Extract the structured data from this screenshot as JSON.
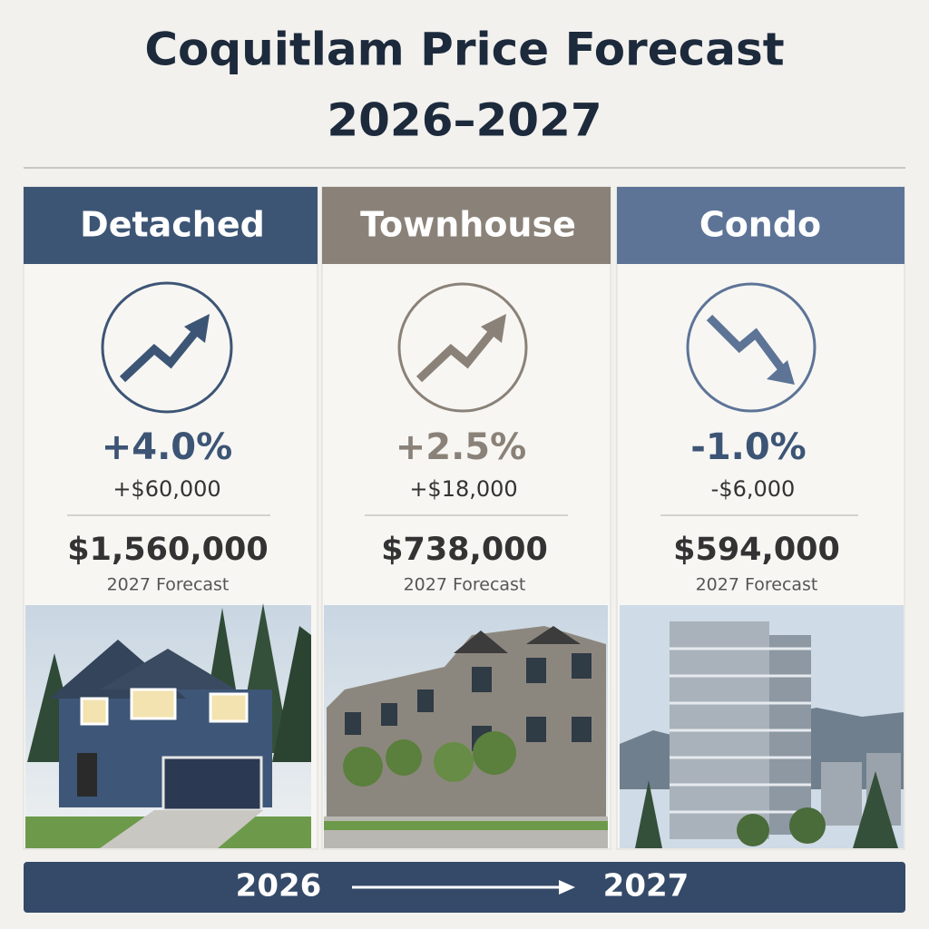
{
  "header": {
    "title": [
      "Coquitlam Price Forecast",
      "2026–2027"
    ]
  },
  "columns": [
    {
      "name": "Detached",
      "change": "+4.0%",
      "change_amount": "+$60,000",
      "forecast_price": "$1,560,000",
      "forecast_label": "2027 Forecast"
    },
    {
      "name": "Townhouse",
      "change": "+2.5%",
      "change_amount": "+$18,000",
      "forecast_price": "$738,000",
      "forecast_label": "2027 Forecast"
    },
    {
      "name": "Condo",
      "change": "-1.0%",
      "change_amount": "-$6,000",
      "forecast_price": "$594,000",
      "forecast_label": "2027 Forecast"
    }
  ],
  "footer": {
    "from": "2026",
    "to": "2027"
  }
}
